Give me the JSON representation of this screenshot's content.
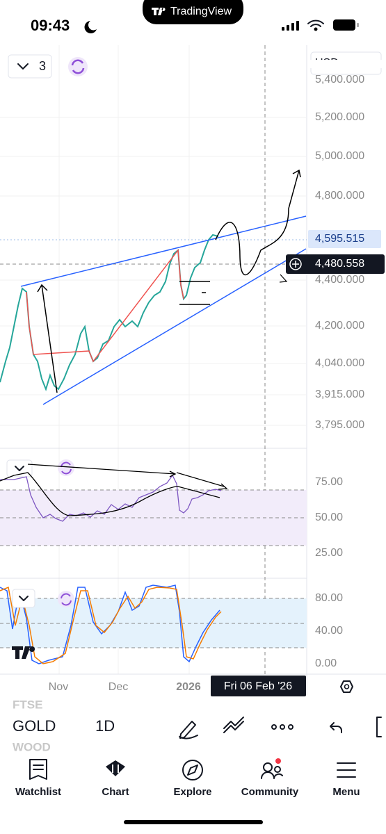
{
  "status_bar": {
    "time": "09:43",
    "brand": "TradingView"
  },
  "chart_header": {
    "interval_count": "3",
    "currency": "USD"
  },
  "price_axis": {
    "labels": [
      "5,400.000",
      "5,200.000",
      "5,000.000",
      "4,800.000",
      "4,400.000",
      "4,200.000",
      "4,040.000",
      "3,915.000",
      "3,795.000"
    ],
    "last_price": "4,595.515",
    "crosshair_price": "4,480.558"
  },
  "rsi_axis": {
    "labels": [
      "75.00",
      "50.00",
      "25.00"
    ]
  },
  "stoch_axis": {
    "labels": [
      "80.00",
      "40.00",
      "0.00"
    ]
  },
  "time_axis": {
    "labels": [
      "Nov",
      "Dec",
      "2026"
    ],
    "crosshair_date": "Fri 06 Feb '26"
  },
  "toolbar": {
    "symbol_above": "FTSE",
    "symbol": "GOLD",
    "symbol_below": "WOOD",
    "interval": "1D"
  },
  "nav": [
    "Watchlist",
    "Chart",
    "Explore",
    "Community",
    "Menu"
  ]
}
